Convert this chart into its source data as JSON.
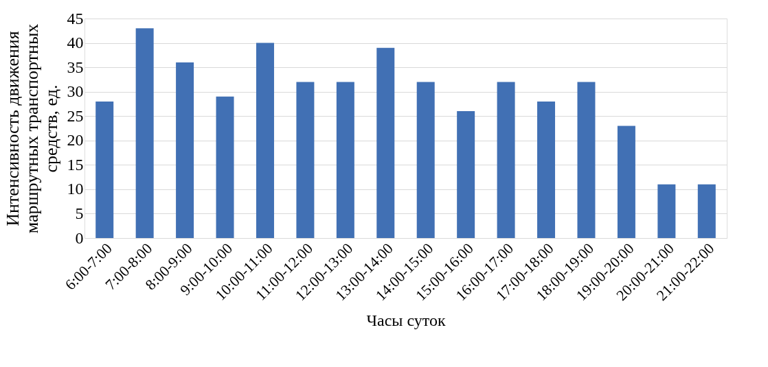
{
  "chart_data": {
    "type": "bar",
    "xlabel": "Часы суток",
    "ylabel": "Интенсивность движения маршрутных транспортных средств, ед.",
    "categories": [
      "6:00-7:00",
      "7:00-8:00",
      "8:00-9:00",
      "9:00-10:00",
      "10:00-11:00",
      "11:00-12:00",
      "12:00-13:00",
      "13:00-14:00",
      "14:00-15:00",
      "15:00-16:00",
      "16:00-17:00",
      "17:00-18:00",
      "18:00-19:00",
      "19:00-20:00",
      "20:00-21:00",
      "21:00-22:00"
    ],
    "values": [
      28,
      43,
      36,
      29,
      40,
      32,
      32,
      39,
      32,
      26,
      32,
      28,
      32,
      23,
      11,
      11
    ],
    "color": "#4170b4",
    "ylim": [
      0,
      45
    ],
    "yticks": [
      0,
      5,
      10,
      15,
      20,
      25,
      30,
      35,
      40,
      45
    ],
    "grid": "y"
  }
}
